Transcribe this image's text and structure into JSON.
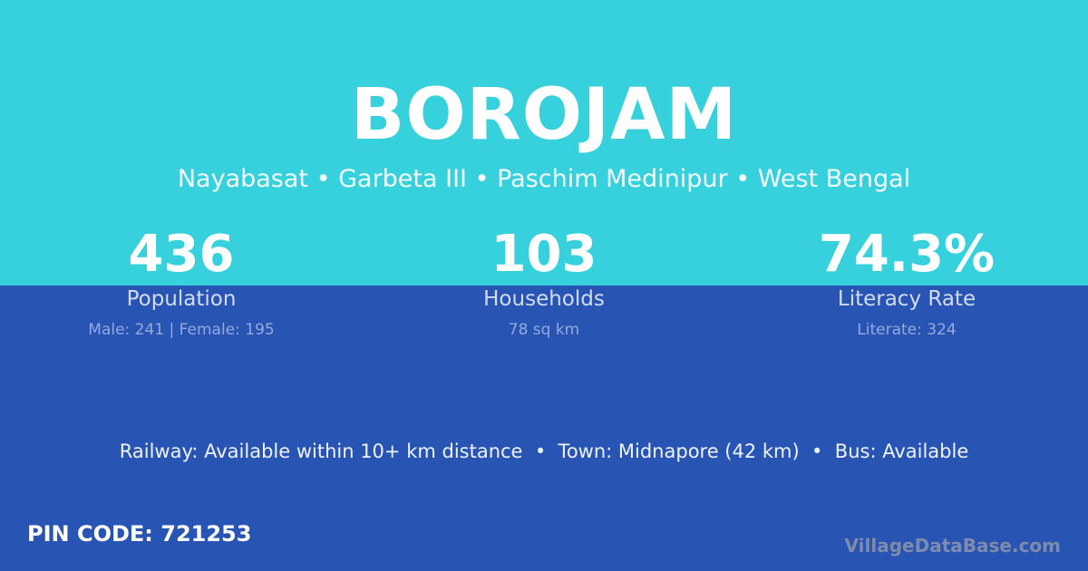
{
  "village": {
    "name": "BOROJAM",
    "location": "Nayabasat • Garbeta III • Paschim Medinipur • West Bengal"
  },
  "stats": [
    {
      "value": "436",
      "label": "Population",
      "detail": "Male: 241 | Female: 195"
    },
    {
      "value": "103",
      "label": "Households",
      "detail": "78 sq km"
    },
    {
      "value": "74.3%",
      "label": "Literacy Rate",
      "detail": "Literate: 324"
    }
  ],
  "transport": "Railway: Available within 10+ km distance  •  Town: Midnapore (42 km)  •  Bus: Available",
  "pin": "PIN CODE: 721253",
  "brand": "VillageDataBase.com",
  "colors": {
    "top": "#36d1dc",
    "bottom": "#2854b3"
  }
}
